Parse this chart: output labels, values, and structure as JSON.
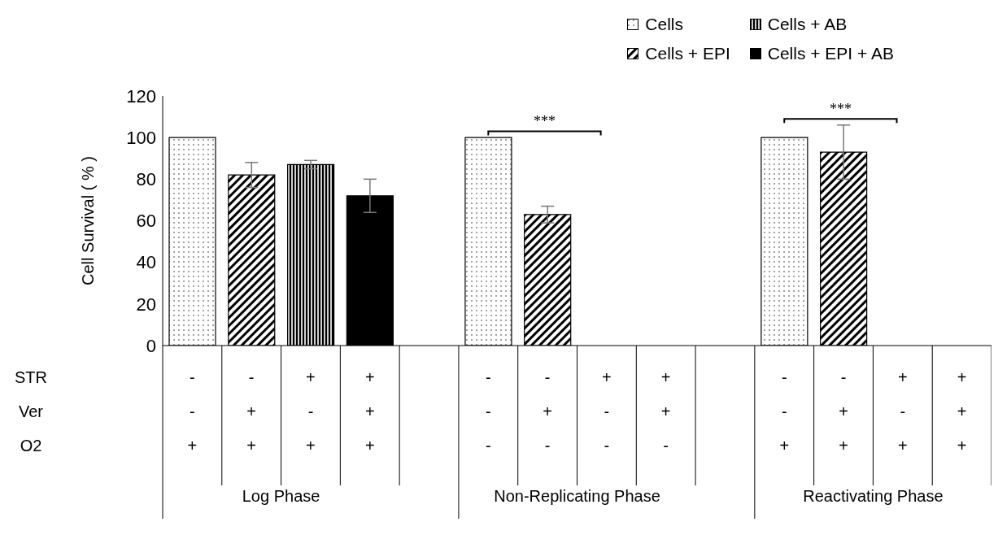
{
  "chart_data": {
    "type": "bar",
    "ylabel": "Cell Survival ( % )",
    "categories": [
      "-\n-\n+",
      "-\n+\n+",
      "+\n-\n+",
      "+\n+\n+",
      null,
      "-\n-\n-",
      "-\n+\n-",
      "+\n-\n-",
      "+\n+\n-",
      null,
      "-\n-\n+",
      "-\n+\n+",
      "+\n-\n+",
      "+\n+\n+"
    ],
    "series": [
      {
        "name": "Cells",
        "color": "#000000",
        "values": [
          100,
          null,
          null,
          null,
          null,
          100,
          null,
          null,
          null,
          null,
          100,
          null,
          null,
          null
        ]
      },
      {
        "name": "Cells + EPI",
        "color": "#000000",
        "values": [
          null,
          82,
          null,
          null,
          null,
          null,
          63,
          null,
          null,
          null,
          null,
          93,
          null,
          null
        ],
        "errors": [
          null,
          6,
          null,
          null,
          null,
          null,
          4,
          null,
          null,
          null,
          null,
          13,
          null,
          null
        ]
      },
      {
        "name": "Cells + AB",
        "color": "#000000",
        "values": [
          null,
          null,
          87,
          null,
          null,
          null,
          null,
          null,
          null,
          null,
          null,
          null,
          null,
          null
        ],
        "errors": [
          null,
          null,
          2,
          null,
          null,
          null,
          null,
          null,
          null,
          null,
          null,
          null,
          null,
          null
        ]
      },
      {
        "name": "Cells + EPI + AB",
        "color": "#000000",
        "values": [
          null,
          null,
          null,
          72,
          null,
          null,
          null,
          null,
          null,
          null,
          null,
          null,
          null,
          null
        ],
        "errors": [
          null,
          null,
          null,
          8,
          null,
          null,
          null,
          null,
          null,
          null,
          null,
          null,
          null,
          null
        ]
      }
    ],
    "ylim": [
      0,
      120
    ],
    "yticks": [
      0,
      20,
      40,
      60,
      80,
      100,
      120
    ],
    "grid": false,
    "legend": "top right",
    "annotations": [
      "***",
      "***",
      "STR",
      "Ver",
      "O2",
      "Log Phase",
      "Non-Replicating Phase",
      "Reactivating Phase"
    ]
  }
}
